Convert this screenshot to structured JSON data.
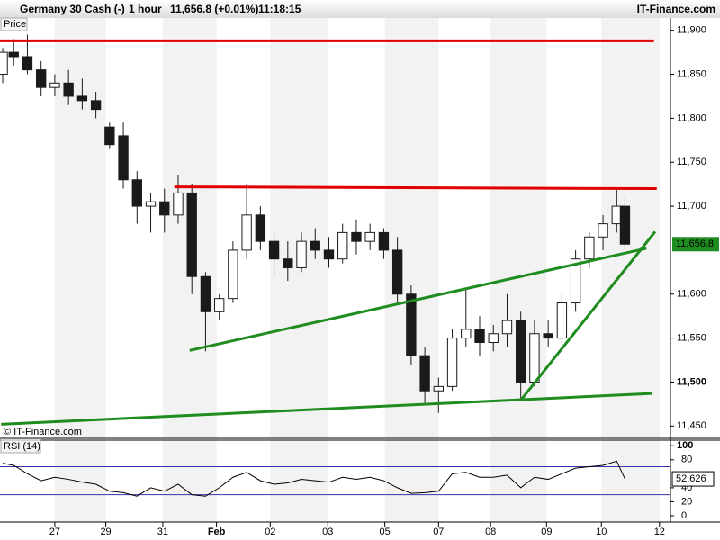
{
  "header": {
    "symbol": "Germany 30 Cash (-)",
    "interval": "1 hour",
    "price": "11,656.8 (+0.01%)",
    "time": "11:18:15",
    "brand": "IT-Finance.com"
  },
  "chart_data": [
    {
      "type": "candlestick",
      "title": "Price",
      "footer": "© IT-Finance.com",
      "x": [
        -0.95,
        -0.75,
        -0.5,
        -0.25,
        0,
        0.25,
        0.5,
        0.75,
        1,
        1.25,
        1.5,
        1.75,
        2,
        2.25,
        2.5,
        2.75,
        3,
        3.25,
        3.5,
        3.75,
        4,
        4.25,
        4.5,
        4.75,
        5,
        5.25,
        5.5,
        5.75,
        6,
        6.25,
        6.5,
        6.75,
        7,
        7.25,
        7.5,
        7.75,
        8,
        8.25,
        8.5,
        8.75,
        9,
        9.25,
        9.5,
        9.75,
        10,
        10.25,
        10.4
      ],
      "open": [
        11850,
        11875,
        11870,
        11855,
        11835,
        11840,
        11825,
        11820,
        11790,
        11780,
        11730,
        11700,
        11705,
        11690,
        11715,
        11620,
        11580,
        11595,
        11650,
        11690,
        11660,
        11640,
        11630,
        11660,
        11650,
        11640,
        11670,
        11660,
        11670,
        11650,
        11600,
        11530,
        11490,
        11495,
        11550,
        11560,
        11545,
        11555,
        11570,
        11500,
        11555,
        11550,
        11590,
        11640,
        11665,
        11680,
        11700
      ],
      "high": [
        11880,
        11890,
        11895,
        11865,
        11850,
        11855,
        11845,
        11830,
        11795,
        11795,
        11740,
        11715,
        11720,
        11735,
        11725,
        11625,
        11600,
        11660,
        11725,
        11700,
        11670,
        11660,
        11670,
        11675,
        11665,
        11680,
        11685,
        11680,
        11675,
        11665,
        11610,
        11540,
        11505,
        11560,
        11605,
        11575,
        11565,
        11600,
        11580,
        11570,
        11570,
        11600,
        11650,
        11670,
        11690,
        11720,
        11710
      ],
      "low": [
        11840,
        11860,
        11850,
        11825,
        11825,
        11815,
        11810,
        11800,
        11765,
        11720,
        11680,
        11670,
        11670,
        11680,
        11600,
        11535,
        11570,
        11590,
        11640,
        11650,
        11620,
        11615,
        11625,
        11640,
        11630,
        11635,
        11645,
        11650,
        11640,
        11590,
        11520,
        11475,
        11465,
        11490,
        11540,
        11530,
        11535,
        11540,
        11480,
        11495,
        11540,
        11545,
        11580,
        11630,
        11650,
        11670,
        11650
      ],
      "close": [
        11875,
        11870,
        11855,
        11835,
        11840,
        11825,
        11820,
        11810,
        11770,
        11730,
        11700,
        11705,
        11690,
        11715,
        11620,
        11580,
        11595,
        11650,
        11690,
        11660,
        11640,
        11630,
        11660,
        11650,
        11640,
        11670,
        11660,
        11670,
        11650,
        11600,
        11530,
        11490,
        11495,
        11550,
        11560,
        11545,
        11555,
        11570,
        11500,
        11555,
        11550,
        11590,
        11640,
        11665,
        11680,
        11700,
        11656.8
      ],
      "up_color": "#ffffff",
      "down_color": "#1a1a1a",
      "wick_color": "#1a1a1a",
      "last_price": {
        "value": 11656.8,
        "label": "11,656.8"
      },
      "last_color": "#1e8c1e",
      "trend_lines": [
        {
          "color": "#e00000",
          "x": [
            -1,
            10.93
          ],
          "y": [
            11888,
            11888
          ]
        },
        {
          "color": "#e00000",
          "x": [
            2.18,
            10.98
          ],
          "y": [
            11722,
            11720
          ]
        },
        {
          "color": "#1e8c1e",
          "x": [
            2.46,
            10.79
          ],
          "y": [
            11536,
            11652
          ]
        },
        {
          "color": "#1e8c1e",
          "x": [
            -0.98,
            10.89
          ],
          "y": [
            11452,
            11487
          ]
        },
        {
          "color": "#1e8c1e",
          "x": [
            8.52,
            10.95
          ],
          "y": [
            11481,
            11671
          ]
        }
      ],
      "xlim": [
        -1,
        11.23
      ],
      "ylim": [
        11436,
        11914
      ],
      "yticks": [
        {
          "value": 11450,
          "label": "11,450"
        },
        {
          "value": 11500,
          "label": "11,500"
        },
        {
          "value": 11550,
          "label": "11,550"
        },
        {
          "value": 11600,
          "label": "11,600"
        },
        {
          "value": 11700,
          "label": "11,700"
        },
        {
          "value": 11750,
          "label": "11,750"
        },
        {
          "value": 11800,
          "label": "11,800"
        },
        {
          "value": 11850,
          "label": "11,850"
        },
        {
          "value": 11900,
          "label": "11,900"
        }
      ],
      "bold_ytick": 11500,
      "xticks": [
        {
          "value": 0,
          "label": "27"
        },
        {
          "value": 0.93,
          "label": "29"
        },
        {
          "value": 1.97,
          "label": "31"
        },
        {
          "value": 2.95,
          "label": "Feb"
        },
        {
          "value": 3.93,
          "label": "02"
        },
        {
          "value": 4.98,
          "label": "03"
        },
        {
          "value": 6.02,
          "label": "05"
        },
        {
          "value": 7,
          "label": "07"
        },
        {
          "value": 7.95,
          "label": "08"
        },
        {
          "value": 8.97,
          "label": "09"
        },
        {
          "value": 9.97,
          "label": "10"
        },
        {
          "value": 11.03,
          "label": "12"
        }
      ],
      "shade_color": "#f2f2f2"
    },
    {
      "type": "line",
      "title": "RSI (14)",
      "values": [
        75,
        72,
        60,
        50,
        55,
        52,
        48,
        45,
        35,
        33,
        28,
        40,
        35,
        45,
        30,
        28,
        40,
        55,
        62,
        50,
        45,
        47,
        52,
        50,
        48,
        55,
        52,
        55,
        50,
        40,
        32,
        33,
        35,
        60,
        62,
        55,
        55,
        58,
        40,
        55,
        52,
        60,
        68,
        70,
        72,
        78,
        52.626
      ],
      "value_labels_last": "52.626",
      "color": "#000000",
      "levels": [
        30,
        70
      ],
      "level_color": "#3333aa",
      "ylim": [
        -9,
        108
      ],
      "yticks": [
        0,
        20,
        40,
        80,
        100
      ],
      "bold_ytick": 100
    }
  ]
}
